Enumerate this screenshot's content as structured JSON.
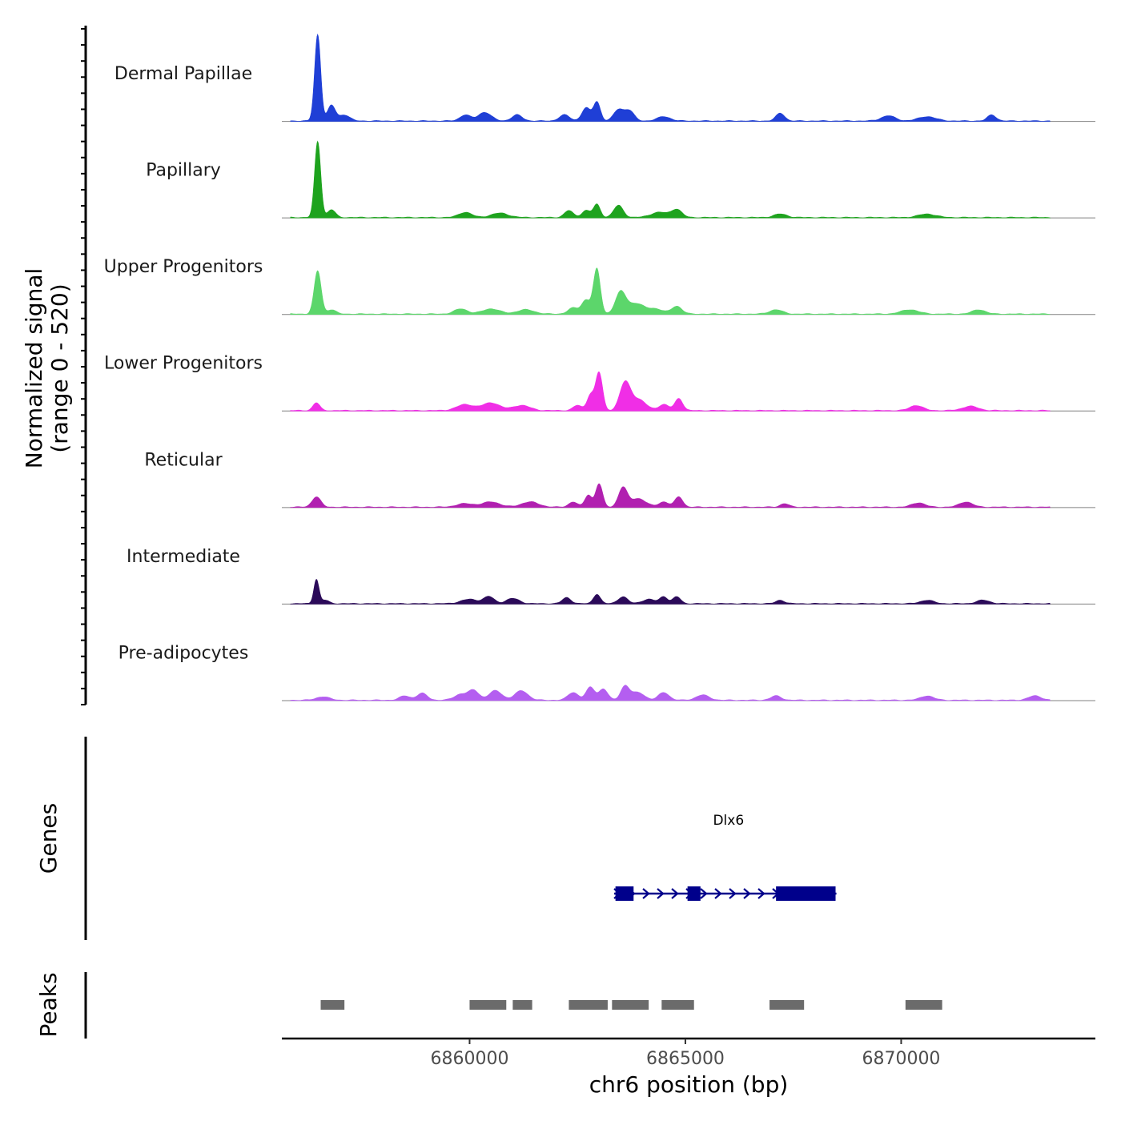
{
  "chart_data": {
    "type": "coverage",
    "chromosome": "chr6",
    "xlabel": "chr6 position (bp)",
    "ylabel_line1": "Normalized signal",
    "ylabel_line2": "(range 0 - 520)",
    "y_range": [
      0,
      520
    ],
    "x_range": [
      6855650,
      6874500
    ],
    "x_ticks": [
      6860000,
      6865000,
      6870000
    ],
    "x_tick_labels": [
      "6860000",
      "6865000",
      "6870000"
    ],
    "genes_label": "Genes",
    "peaks_label": "Peaks",
    "tracks": [
      {
        "name": "Dermal Papillae",
        "color": "#1f3fd6",
        "coverage_end": 6873450,
        "peaks": [
          [
            6856480,
            1.0,
            70
          ],
          [
            6856800,
            0.18,
            90
          ],
          [
            6857100,
            0.07,
            120
          ],
          [
            6859900,
            0.07,
            120
          ],
          [
            6860350,
            0.1,
            150
          ],
          [
            6861100,
            0.07,
            120
          ],
          [
            6862200,
            0.07,
            120
          ],
          [
            6862700,
            0.15,
            100
          ],
          [
            6862950,
            0.22,
            80
          ],
          [
            6863450,
            0.13,
            110
          ],
          [
            6863700,
            0.12,
            110
          ],
          [
            6864500,
            0.05,
            150
          ],
          [
            6867200,
            0.09,
            100
          ],
          [
            6869700,
            0.06,
            160
          ],
          [
            6870600,
            0.05,
            200
          ],
          [
            6872100,
            0.07,
            100
          ]
        ]
      },
      {
        "name": "Papillary",
        "color": "#1ea31e",
        "coverage_end": 6873450,
        "peaks": [
          [
            6856480,
            0.88,
            70
          ],
          [
            6856800,
            0.09,
            90
          ],
          [
            6859900,
            0.06,
            150
          ],
          [
            6860700,
            0.05,
            200
          ],
          [
            6862300,
            0.08,
            100
          ],
          [
            6862700,
            0.08,
            100
          ],
          [
            6862950,
            0.15,
            80
          ],
          [
            6863450,
            0.14,
            110
          ],
          [
            6864400,
            0.06,
            200
          ],
          [
            6864800,
            0.09,
            120
          ],
          [
            6867200,
            0.04,
            150
          ],
          [
            6870600,
            0.04,
            200
          ]
        ]
      },
      {
        "name": "Upper Progenitors",
        "color": "#5cd66b",
        "coverage_end": 6873450,
        "peaks": [
          [
            6856480,
            0.5,
            80
          ],
          [
            6856800,
            0.05,
            100
          ],
          [
            6859800,
            0.06,
            150
          ],
          [
            6860500,
            0.06,
            200
          ],
          [
            6861300,
            0.05,
            200
          ],
          [
            6862400,
            0.07,
            120
          ],
          [
            6862700,
            0.16,
            100
          ],
          [
            6862950,
            0.52,
            80
          ],
          [
            6863500,
            0.25,
            120
          ],
          [
            6863850,
            0.12,
            180
          ],
          [
            6864300,
            0.06,
            180
          ],
          [
            6864800,
            0.09,
            120
          ],
          [
            6867100,
            0.05,
            150
          ],
          [
            6870200,
            0.05,
            200
          ],
          [
            6871800,
            0.05,
            150
          ]
        ]
      },
      {
        "name": "Lower Progenitors",
        "color": "#f02ee6",
        "coverage_end": 6873450,
        "peaks": [
          [
            6856450,
            0.09,
            80
          ],
          [
            6859900,
            0.07,
            200
          ],
          [
            6860500,
            0.09,
            200
          ],
          [
            6861200,
            0.06,
            200
          ],
          [
            6862500,
            0.06,
            100
          ],
          [
            6862800,
            0.18,
            80
          ],
          [
            6863000,
            0.44,
            80
          ],
          [
            6863600,
            0.31,
            120
          ],
          [
            6863900,
            0.13,
            180
          ],
          [
            6864500,
            0.07,
            120
          ],
          [
            6864850,
            0.14,
            90
          ],
          [
            6870350,
            0.06,
            150
          ],
          [
            6871600,
            0.05,
            180
          ]
        ]
      },
      {
        "name": "Reticular",
        "color": "#b120b0",
        "coverage_end": 6873450,
        "peaks": [
          [
            6856450,
            0.12,
            100
          ],
          [
            6859900,
            0.04,
            200
          ],
          [
            6860500,
            0.06,
            200
          ],
          [
            6861400,
            0.06,
            200
          ],
          [
            6862400,
            0.06,
            100
          ],
          [
            6862750,
            0.14,
            80
          ],
          [
            6863000,
            0.27,
            80
          ],
          [
            6863550,
            0.22,
            100
          ],
          [
            6863900,
            0.1,
            180
          ],
          [
            6864500,
            0.06,
            120
          ],
          [
            6864850,
            0.12,
            90
          ],
          [
            6867300,
            0.04,
            100
          ],
          [
            6870400,
            0.05,
            150
          ],
          [
            6871500,
            0.06,
            150
          ]
        ]
      },
      {
        "name": "Intermediate",
        "color": "#2b0a59",
        "coverage_end": 6873450,
        "peaks": [
          [
            6856450,
            0.28,
            60
          ],
          [
            6856650,
            0.04,
            90
          ],
          [
            6860000,
            0.05,
            200
          ],
          [
            6860450,
            0.08,
            120
          ],
          [
            6861000,
            0.06,
            150
          ],
          [
            6862250,
            0.07,
            100
          ],
          [
            6862950,
            0.11,
            80
          ],
          [
            6863550,
            0.08,
            110
          ],
          [
            6864150,
            0.05,
            150
          ],
          [
            6864500,
            0.08,
            90
          ],
          [
            6864800,
            0.08,
            90
          ],
          [
            6867200,
            0.04,
            100
          ],
          [
            6870600,
            0.04,
            150
          ],
          [
            6871900,
            0.04,
            150
          ]
        ]
      },
      {
        "name": "Pre-adipocytes",
        "color": "#b45ef0",
        "coverage_end": 6873450,
        "peaks": [
          [
            6856600,
            0.04,
            150
          ],
          [
            6858500,
            0.05,
            120
          ],
          [
            6858900,
            0.08,
            120
          ],
          [
            6859800,
            0.07,
            150
          ],
          [
            6860100,
            0.11,
            120
          ],
          [
            6860600,
            0.11,
            150
          ],
          [
            6861200,
            0.11,
            150
          ],
          [
            6862400,
            0.09,
            120
          ],
          [
            6862800,
            0.15,
            100
          ],
          [
            6863100,
            0.13,
            100
          ],
          [
            6863600,
            0.16,
            100
          ],
          [
            6863900,
            0.09,
            150
          ],
          [
            6864500,
            0.09,
            120
          ],
          [
            6865400,
            0.06,
            150
          ],
          [
            6867100,
            0.05,
            120
          ],
          [
            6870600,
            0.05,
            150
          ],
          [
            6873100,
            0.05,
            150
          ]
        ]
      }
    ],
    "genes": [
      {
        "name": "Dlx6",
        "strand": "+",
        "color": "#00008b",
        "start": 6863350,
        "end": 6868500,
        "exons": [
          [
            6863380,
            6863800
          ],
          [
            6865050,
            6865350
          ],
          [
            6867100,
            6868480
          ]
        ]
      }
    ],
    "peak_regions": {
      "color": "#6b6b6b",
      "regions": [
        [
          6856550,
          6857100
        ],
        [
          6860000,
          6860850
        ],
        [
          6861000,
          6861450
        ],
        [
          6862300,
          6863200
        ],
        [
          6863300,
          6864150
        ],
        [
          6864450,
          6865200
        ],
        [
          6866950,
          6867750
        ],
        [
          6870100,
          6870950
        ]
      ]
    }
  }
}
